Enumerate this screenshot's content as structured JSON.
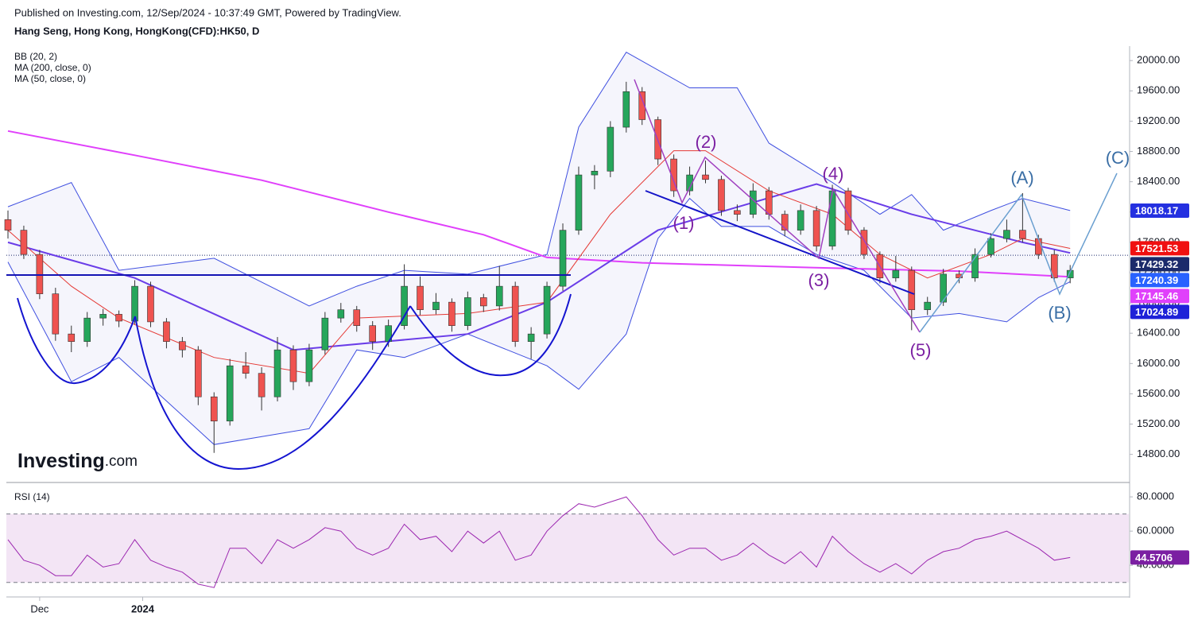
{
  "header": {
    "published": "Published on Investing.com, 12/Sep/2024 - 10:37:49 GMT, Powered by TradingView.",
    "symbol": "Hang Seng, Hong Kong, HongKong(CFD):HK50, D"
  },
  "logo": {
    "name": "Investing",
    "suffix": ".com"
  },
  "annotations": {
    "waves": [
      "(1)",
      "(2)",
      "(3)",
      "(4)",
      "(5)"
    ],
    "corrective": [
      "(A)",
      "(B)",
      "(C)"
    ]
  },
  "chart_data": [
    {
      "type": "candlestick",
      "legend": [
        "BB (20, 2)",
        "MA (200, close, 0)",
        "MA (50, close, 0)"
      ],
      "up_color": "#26a65b",
      "down_color": "#ef5350",
      "xlim": [
        -0.1,
        70.7
      ],
      "ylim": [
        14450,
        20170
      ],
      "yticks": [
        {
          "value": 20000,
          "label": "20000.00"
        },
        {
          "value": 19600,
          "label": "19600.00"
        },
        {
          "value": 19200,
          "label": "19200.00"
        },
        {
          "value": 18800,
          "label": "18800.00"
        },
        {
          "value": 18400,
          "label": "18400.00"
        },
        {
          "value": 18000,
          "label": "18000.00"
        },
        {
          "value": 17600,
          "label": "17600.00"
        },
        {
          "value": 17200,
          "label": "17200.00"
        },
        {
          "value": 16800,
          "label": "16800.00"
        },
        {
          "value": 16400,
          "label": "16400.00"
        },
        {
          "value": 16000,
          "label": "16000.00"
        },
        {
          "value": 15600,
          "label": "15600.00"
        },
        {
          "value": 15200,
          "label": "15200.00"
        },
        {
          "value": 14800,
          "label": "14800.00"
        }
      ],
      "candles": [
        [
          17900,
          18020,
          17650,
          17760
        ],
        [
          17760,
          17820,
          17380,
          17440
        ],
        [
          17440,
          17500,
          16850,
          16920
        ],
        [
          16920,
          17000,
          16300,
          16390
        ],
        [
          16390,
          16500,
          16150,
          16290
        ],
        [
          16290,
          16680,
          16220,
          16600
        ],
        [
          16600,
          16720,
          16500,
          16650
        ],
        [
          16650,
          16700,
          16480,
          16560
        ],
        [
          16560,
          17100,
          16520,
          17020
        ],
        [
          17020,
          17080,
          16480,
          16550
        ],
        [
          16550,
          16600,
          16200,
          16290
        ],
        [
          16290,
          16350,
          16080,
          16180
        ],
        [
          16180,
          16230,
          15450,
          15560
        ],
        [
          15560,
          15620,
          14820,
          15240
        ],
        [
          15240,
          16060,
          15180,
          15970
        ],
        [
          15970,
          16150,
          15800,
          15870
        ],
        [
          15870,
          15950,
          15380,
          15560
        ],
        [
          15560,
          16350,
          15500,
          16180
        ],
        [
          16180,
          16240,
          15650,
          15760
        ],
        [
          15760,
          16260,
          15700,
          16180
        ],
        [
          16180,
          16680,
          16120,
          16600
        ],
        [
          16600,
          16800,
          16540,
          16710
        ],
        [
          16710,
          16760,
          16420,
          16500
        ],
        [
          16500,
          16560,
          16180,
          16290
        ],
        [
          16290,
          16580,
          16220,
          16500
        ],
        [
          16500,
          17310,
          16450,
          17020
        ],
        [
          17020,
          17150,
          16640,
          16710
        ],
        [
          16710,
          16930,
          16650,
          16810
        ],
        [
          16810,
          16860,
          16420,
          16500
        ],
        [
          16500,
          16950,
          16440,
          16870
        ],
        [
          16870,
          16920,
          16680,
          16760
        ],
        [
          16760,
          17290,
          16700,
          17020
        ],
        [
          17020,
          17080,
          16220,
          16290
        ],
        [
          16290,
          16480,
          16060,
          16390
        ],
        [
          16390,
          17080,
          16330,
          17020
        ],
        [
          17020,
          17850,
          16960,
          17760
        ],
        [
          17760,
          18600,
          17700,
          18490
        ],
        [
          18490,
          18620,
          18300,
          18540
        ],
        [
          18540,
          19200,
          18460,
          19120
        ],
        [
          19120,
          19720,
          19050,
          19590
        ],
        [
          19590,
          19650,
          19150,
          19220
        ],
        [
          19220,
          19260,
          18620,
          18700
        ],
        [
          18700,
          18760,
          18200,
          18280
        ],
        [
          18280,
          18600,
          18220,
          18490
        ],
        [
          18490,
          18680,
          18380,
          18430
        ],
        [
          18430,
          18480,
          17950,
          18020
        ],
        [
          18020,
          18100,
          17880,
          17970
        ],
        [
          17970,
          18380,
          17920,
          18280
        ],
        [
          18280,
          18330,
          17900,
          17970
        ],
        [
          17970,
          18020,
          17680,
          17760
        ],
        [
          17760,
          18100,
          17700,
          18020
        ],
        [
          18020,
          18080,
          17480,
          17550
        ],
        [
          17550,
          18360,
          17500,
          18280
        ],
        [
          18280,
          18320,
          17700,
          17760
        ],
        [
          17760,
          17800,
          17380,
          17440
        ],
        [
          17440,
          17480,
          17060,
          17130
        ],
        [
          17130,
          17420,
          17080,
          17230
        ],
        [
          17230,
          17280,
          16440,
          16710
        ],
        [
          16710,
          16880,
          16640,
          16810
        ],
        [
          16810,
          17250,
          16760,
          17180
        ],
        [
          17180,
          17230,
          17060,
          17130
        ],
        [
          17130,
          17520,
          17080,
          17440
        ],
        [
          17440,
          17720,
          17400,
          17650
        ],
        [
          17650,
          17900,
          17600,
          17760
        ],
        [
          17760,
          18250,
          17600,
          17650
        ],
        [
          17650,
          17700,
          17380,
          17440
        ],
        [
          17440,
          17500,
          17080,
          17130
        ],
        [
          17130,
          17300,
          17060,
          17230
        ]
      ],
      "overlays": {
        "bb_upper": {
          "color": "#3f4fe0",
          "x": [
            0,
            4,
            7,
            13,
            19,
            22,
            25,
            29,
            34,
            36,
            39,
            43,
            46,
            48,
            50,
            52,
            55,
            57,
            59,
            62,
            64,
            67
          ],
          "values": [
            18070,
            18390,
            17230,
            17390,
            16760,
            17020,
            17230,
            17180,
            17440,
            19120,
            20110,
            19640,
            19640,
            18910,
            18650,
            18390,
            17970,
            18230,
            17760,
            18020,
            18180,
            18020
          ]
        },
        "bb_lower": {
          "color": "#3f4fe0",
          "x": [
            0,
            4,
            7,
            13,
            19,
            22,
            25,
            29,
            34,
            36,
            39,
            41,
            43,
            45,
            48,
            51,
            54,
            57,
            60,
            63,
            65,
            67
          ],
          "values": [
            17340,
            15760,
            16080,
            14930,
            15140,
            16180,
            16080,
            16390,
            15970,
            15660,
            16390,
            17650,
            18180,
            17810,
            17810,
            17440,
            17230,
            16600,
            16660,
            16550,
            16870,
            17080
          ]
        },
        "bb_basis": {
          "color": "#e53935",
          "x": [
            0,
            4,
            7,
            13,
            19,
            22,
            29,
            34,
            38,
            42,
            44,
            48,
            52,
            55,
            58,
            62,
            64,
            67
          ],
          "values": [
            17760,
            17020,
            16600,
            16080,
            15870,
            16600,
            16660,
            16810,
            17970,
            18810,
            18810,
            18280,
            17970,
            17440,
            17130,
            17440,
            17650,
            17520
          ]
        },
        "ma200": {
          "color": "#e040fb",
          "x": [
            0,
            8,
            16,
            24,
            30,
            34,
            40,
            50,
            60,
            67
          ],
          "values": [
            19070,
            18750,
            18420,
            18000,
            17700,
            17400,
            17330,
            17270,
            17220,
            17145
          ]
        },
        "ma50": {
          "color": "#6a3de8",
          "x": [
            0,
            8,
            18,
            29,
            34,
            41,
            51,
            57,
            64,
            67
          ],
          "values": [
            17600,
            17130,
            16180,
            16390,
            16810,
            17760,
            18370,
            17970,
            17600,
            17460
          ]
        }
      },
      "last_price": 17429.32,
      "price_labels": [
        {
          "value": 18018.17,
          "color": "#2430e0"
        },
        {
          "value": 17521.53,
          "color": "#f01010"
        },
        {
          "value": 17429.32,
          "color": "#1b2a6b"
        },
        {
          "value": 17240.39,
          "color": "#2962ff"
        },
        {
          "value": 17145.46,
          "color": "#e040fb"
        },
        {
          "value": 17024.89,
          "color": "#1e22d8"
        }
      ]
    },
    {
      "type": "line",
      "title": "RSI (14)",
      "color": "#9c27b0",
      "xlim": [
        -0.1,
        70.7
      ],
      "ylim": [
        22,
        87
      ],
      "yticks": [
        {
          "value": 80,
          "label": "80.0000"
        },
        {
          "value": 60,
          "label": "60.0000"
        },
        {
          "value": 40,
          "label": "40.0000"
        }
      ],
      "bands": [
        70,
        30
      ],
      "xticks": [
        {
          "value": 2,
          "label": "Dec"
        },
        {
          "value": 8.5,
          "label": "2024"
        }
      ],
      "x": [
        0,
        1,
        2,
        3,
        4,
        5,
        6,
        7,
        8,
        9,
        10,
        11,
        12,
        13,
        14,
        15,
        16,
        17,
        18,
        19,
        20,
        21,
        22,
        23,
        24,
        25,
        26,
        27,
        28,
        29,
        30,
        31,
        32,
        33,
        34,
        35,
        36,
        37,
        38,
        39,
        40,
        41,
        42,
        43,
        44,
        45,
        46,
        47,
        48,
        49,
        50,
        51,
        52,
        53,
        54,
        55,
        56,
        57,
        58,
        59,
        60,
        61,
        62,
        63,
        64,
        65,
        66,
        67
      ],
      "values": [
        55,
        43,
        40,
        34,
        34,
        46,
        39,
        41,
        55,
        43,
        39,
        36,
        29,
        27,
        50,
        50,
        41,
        55,
        50,
        55,
        62,
        60,
        50,
        46,
        50,
        64,
        55,
        57,
        48,
        60,
        53,
        60,
        43,
        46,
        60,
        69,
        76,
        74,
        77,
        80,
        69,
        55,
        46,
        50,
        50,
        43,
        46,
        53,
        46,
        41,
        48,
        39,
        57,
        48,
        41,
        36,
        41,
        35,
        43,
        48,
        50,
        55,
        57,
        60,
        55,
        50,
        43,
        44.57
      ],
      "last_label": {
        "value": 44.5706,
        "color": "#7b1fa2"
      }
    }
  ]
}
